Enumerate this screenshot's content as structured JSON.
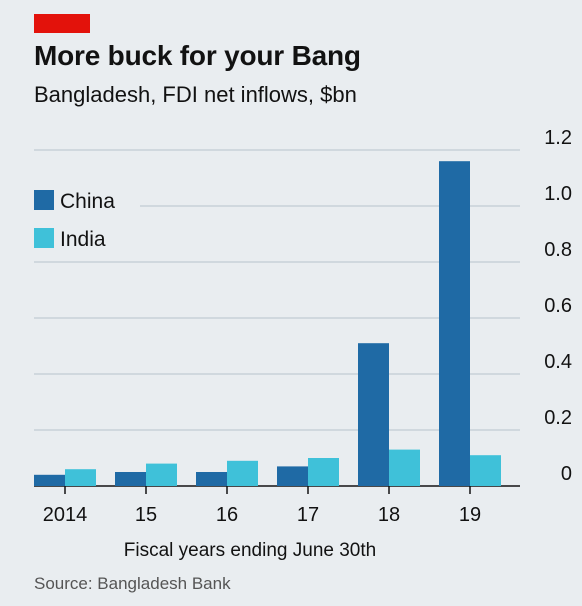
{
  "header": {
    "title": "More buck for your Bang",
    "subtitle": "Bangladesh, FDI net inflows, $bn"
  },
  "footer": {
    "source": "Source: Bangladesh Bank"
  },
  "colors": {
    "china": "#1f6aa5",
    "india": "#3fc1d9",
    "accent": "#e3120b",
    "grid": "#b7c3cc",
    "background": "#e9edf0"
  },
  "chart_data": {
    "type": "bar",
    "categories": [
      "2014",
      "15",
      "16",
      "17",
      "18",
      "19"
    ],
    "series": [
      {
        "name": "China",
        "values": [
          0.04,
          0.05,
          0.05,
          0.07,
          0.51,
          1.16
        ]
      },
      {
        "name": "India",
        "values": [
          0.06,
          0.08,
          0.09,
          0.1,
          0.13,
          0.11
        ]
      }
    ],
    "xlabel": "Fiscal years ending June 30th",
    "ylabel": "",
    "ylim": [
      0,
      1.2
    ],
    "yticks": [
      "0",
      "0.2",
      "0.4",
      "0.6",
      "0.8",
      "1.0",
      "1.2"
    ],
    "grid": true,
    "legend_position": "top-left",
    "y_axis_side": "right"
  }
}
